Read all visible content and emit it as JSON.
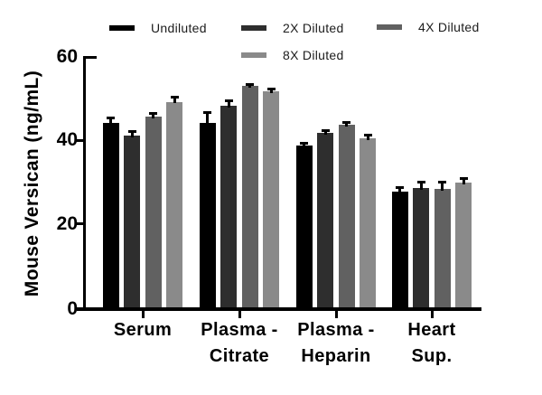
{
  "figure": {
    "background": "#ffffff",
    "axis_color": "#000000"
  },
  "chart_data": {
    "type": "bar",
    "title": "",
    "xlabel": "",
    "ylabel": "Mouse Versican (ng/mL)",
    "ylim": [
      0,
      60
    ],
    "yticks": [
      0,
      20,
      40,
      60
    ],
    "grid": false,
    "legend_position": "top",
    "error_bars": "upper",
    "error_bar_color": "#000000",
    "categories": [
      "Serum",
      "Plasma - Citrate",
      "Plasma - Heparin",
      "Heart Sup."
    ],
    "category_label_lines": [
      [
        "Serum"
      ],
      [
        "Plasma -",
        "Citrate"
      ],
      [
        "Plasma -",
        "Heparin"
      ],
      [
        "Heart",
        "Sup."
      ]
    ],
    "series": [
      {
        "name": "Undiluted",
        "color": "#000000",
        "values": [
          44.0,
          44.1,
          38.6,
          27.6
        ],
        "errors": [
          1.2,
          2.4,
          0.6,
          1.1
        ]
      },
      {
        "name": "2X Diluted",
        "color": "#2e2e2e",
        "values": [
          41.1,
          48.1,
          41.6,
          28.5
        ],
        "errors": [
          0.9,
          1.2,
          0.6,
          1.3
        ]
      },
      {
        "name": "4X Diluted",
        "color": "#616161",
        "values": [
          45.6,
          52.8,
          43.7,
          28.3
        ],
        "errors": [
          0.6,
          0.5,
          0.5,
          1.5
        ]
      },
      {
        "name": "8X Diluted",
        "color": "#8a8a8a",
        "values": [
          49.1,
          51.6,
          40.4,
          29.8
        ],
        "errors": [
          1.0,
          0.6,
          0.8,
          1.0
        ]
      }
    ]
  }
}
